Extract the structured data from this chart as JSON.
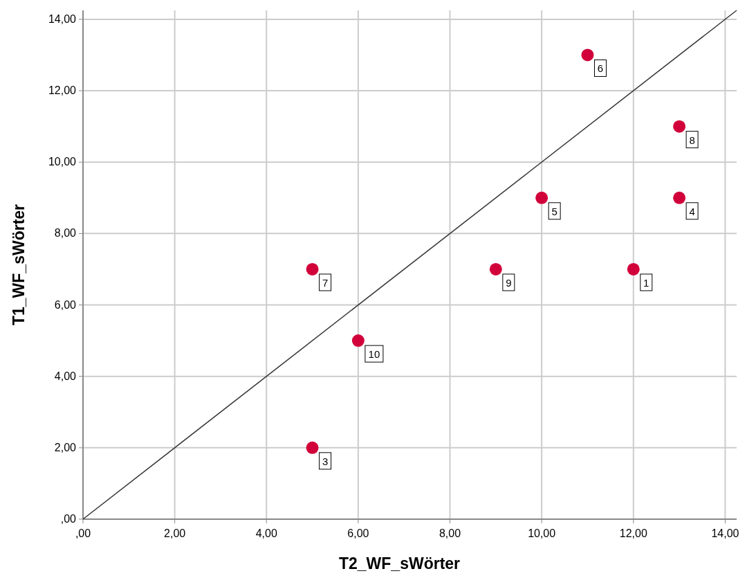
{
  "chart_data": {
    "type": "scatter",
    "xlabel": "T2_WF_sWörter",
    "ylabel": "T1_WF_sWörter",
    "xlim": [
      0,
      14.25
    ],
    "ylim": [
      0,
      14.25
    ],
    "xticks": [
      {
        "value": 0,
        "label": ",00"
      },
      {
        "value": 2,
        "label": "2,00"
      },
      {
        "value": 4,
        "label": "4,00"
      },
      {
        "value": 6,
        "label": "6,00"
      },
      {
        "value": 8,
        "label": "8,00"
      },
      {
        "value": 10,
        "label": "10,00"
      },
      {
        "value": 12,
        "label": "12,00"
      },
      {
        "value": 14,
        "label": "14,00"
      }
    ],
    "yticks": [
      {
        "value": 0,
        "label": ",00"
      },
      {
        "value": 2,
        "label": "2,00"
      },
      {
        "value": 4,
        "label": "4,00"
      },
      {
        "value": 6,
        "label": "6,00"
      },
      {
        "value": 8,
        "label": "8,00"
      },
      {
        "value": 10,
        "label": "10,00"
      },
      {
        "value": 12,
        "label": "12,00"
      },
      {
        "value": 14,
        "label": "14,00"
      }
    ],
    "grid": true,
    "annotations": [
      {
        "text": "1",
        "x": 12,
        "y": 7
      },
      {
        "text": "3",
        "x": 5,
        "y": 2
      },
      {
        "text": "4",
        "x": 13,
        "y": 9
      },
      {
        "text": "5",
        "x": 10,
        "y": 9
      },
      {
        "text": "6",
        "x": 11,
        "y": 13
      },
      {
        "text": "7",
        "x": 5,
        "y": 7
      },
      {
        "text": "8",
        "x": 13,
        "y": 11
      },
      {
        "text": "9",
        "x": 9,
        "y": 7
      },
      {
        "text": "10",
        "x": 6,
        "y": 5
      }
    ],
    "series": [
      {
        "color": "#d1003a",
        "marker": "circle",
        "x": [
          12,
          5,
          13,
          10,
          11,
          5,
          13,
          9,
          6
        ],
        "values": [
          7,
          2,
          9,
          9,
          13,
          7,
          11,
          7,
          5
        ]
      },
      {
        "type": "line",
        "color": "#333333",
        "x": [
          0,
          14.25
        ],
        "values": [
          0,
          14.25
        ]
      }
    ]
  }
}
